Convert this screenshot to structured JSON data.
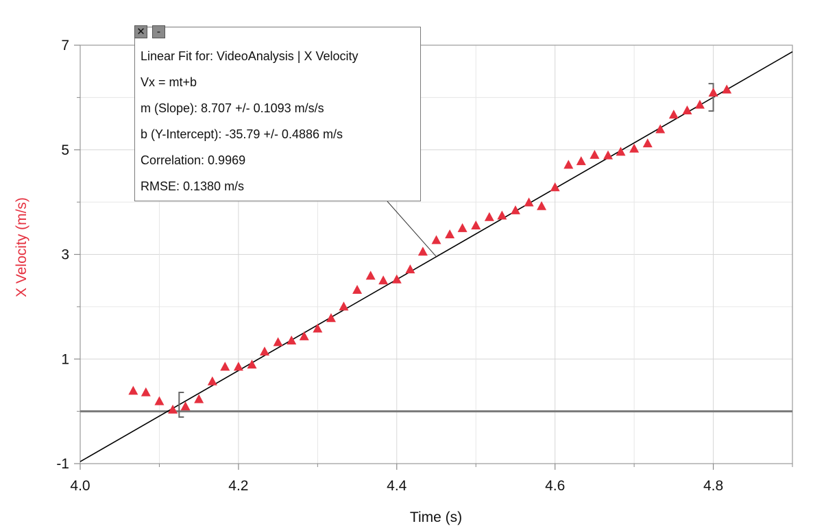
{
  "chart_data": {
    "type": "scatter",
    "xlabel": "Time (s)",
    "ylabel": "X Velocity (m/s)",
    "xlim": [
      4.0,
      4.9
    ],
    "ylim": [
      -1,
      7
    ],
    "x_ticks": [
      "4.0",
      "4.2",
      "4.4",
      "4.6",
      "4.8"
    ],
    "y_ticks": [
      "-1",
      "1",
      "3",
      "5",
      "7"
    ],
    "grid": true,
    "colors": {
      "points": "#e5303f",
      "ylabel": "#e5303f",
      "fit_line": "#000000",
      "zero_line": "#7a7a7a"
    },
    "series": [
      {
        "marker": "triangle",
        "points": [
          [
            4.067,
            0.37
          ],
          [
            4.083,
            0.34
          ],
          [
            4.1,
            0.17
          ],
          [
            4.117,
            0.01
          ],
          [
            4.133,
            0.07
          ],
          [
            4.15,
            0.21
          ],
          [
            4.167,
            0.55
          ],
          [
            4.183,
            0.83
          ],
          [
            4.2,
            0.83
          ],
          [
            4.217,
            0.87
          ],
          [
            4.233,
            1.12
          ],
          [
            4.25,
            1.3
          ],
          [
            4.267,
            1.33
          ],
          [
            4.283,
            1.41
          ],
          [
            4.3,
            1.56
          ],
          [
            4.317,
            1.76
          ],
          [
            4.333,
            1.98
          ],
          [
            4.35,
            2.3
          ],
          [
            4.367,
            2.57
          ],
          [
            4.383,
            2.48
          ],
          [
            4.4,
            2.5
          ],
          [
            4.417,
            2.69
          ],
          [
            4.433,
            3.03
          ],
          [
            4.45,
            3.25
          ],
          [
            4.467,
            3.36
          ],
          [
            4.483,
            3.48
          ],
          [
            4.5,
            3.53
          ],
          [
            4.517,
            3.69
          ],
          [
            4.533,
            3.72
          ],
          [
            4.55,
            3.82
          ],
          [
            4.567,
            3.97
          ],
          [
            4.583,
            3.9
          ],
          [
            4.6,
            4.26
          ],
          [
            4.617,
            4.69
          ],
          [
            4.633,
            4.76
          ],
          [
            4.65,
            4.88
          ],
          [
            4.667,
            4.87
          ],
          [
            4.683,
            4.94
          ],
          [
            4.7,
            5.0
          ],
          [
            4.717,
            5.1
          ],
          [
            4.733,
            5.37
          ],
          [
            4.75,
            5.65
          ],
          [
            4.767,
            5.73
          ],
          [
            4.783,
            5.84
          ],
          [
            4.8,
            6.07
          ],
          [
            4.817,
            6.13
          ]
        ]
      }
    ],
    "fit_line": {
      "slope": 8.707,
      "intercept": -35.79
    },
    "fit_range": [
      4.125,
      4.8
    ],
    "zero_line": 0
  },
  "annotation": {
    "title": "Linear Fit for: VideoAnalysis | X Velocity",
    "equation": "Vx = mt+b",
    "slope": "m (Slope): 8.707 +/- 0.1093 m/s/s",
    "intercept": "b (Y-Intercept): -35.79 +/- 0.4886 m/s",
    "correlation": "Correlation: 0.9969",
    "rmse": "RMSE: 0.1380 m/s",
    "close_glyph": "✕",
    "minimize_glyph": "-"
  }
}
